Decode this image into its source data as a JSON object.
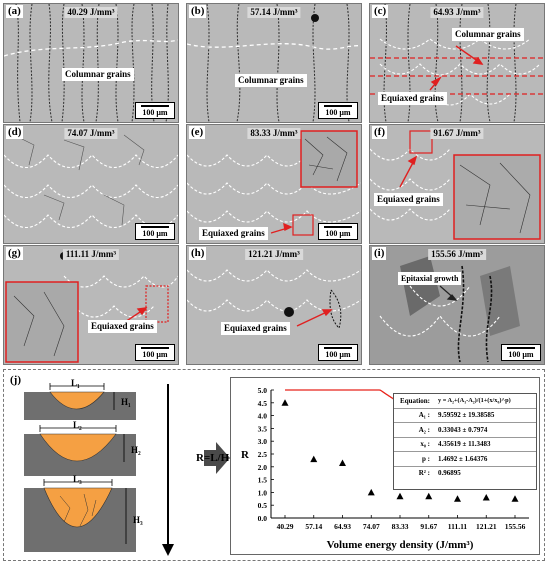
{
  "panels": [
    {
      "id": "a",
      "label": "(a)",
      "energy": "40.29 J/mm³",
      "annotation": "Columnar grains",
      "scale": "100 μm"
    },
    {
      "id": "b",
      "label": "(b)",
      "energy": "57.14 J/mm³",
      "annotation": "Columnar grains",
      "scale": "100 μm"
    },
    {
      "id": "c",
      "label": "(c)",
      "energy": "64.93 J/mm³",
      "annotation": "Columnar grains",
      "annotation2": "Equiaxed grains",
      "scale": "100 μm"
    },
    {
      "id": "d",
      "label": "(d)",
      "energy": "74.07 J/mm³",
      "scale": "100 μm"
    },
    {
      "id": "e",
      "label": "(e)",
      "energy": "83.33 J/mm³",
      "annotation": "Equiaxed grains",
      "scale": "100 μm"
    },
    {
      "id": "f",
      "label": "(f)",
      "energy": "91.67 J/mm³",
      "annotation": "Equiaxed grains",
      "scale": "100 μm"
    },
    {
      "id": "g",
      "label": "(g)",
      "energy": "111.11 J/mm³",
      "annotation": "Equiaxed grains",
      "scale": "100 μm"
    },
    {
      "id": "h",
      "label": "(h)",
      "energy": "121.21 J/mm³",
      "annotation": "Equiaxed grains",
      "scale": "100 μm"
    },
    {
      "id": "i",
      "label": "(i)",
      "energy": "155.56 J/mm³",
      "annotation": "Epitaxial growth",
      "scale": "100 μm"
    }
  ],
  "panel_j": {
    "label": "(j)",
    "pool_labels": [
      {
        "L": "L₁",
        "H": "H₁"
      },
      {
        "L": "L₂",
        "H": "H₂"
      },
      {
        "L": "L₃",
        "H": "H₃"
      }
    ],
    "ratio": "R=L/H",
    "colors": {
      "pool": "#f5a043",
      "substrate": "#6f6f6f",
      "fit": "#e8231a",
      "frame": "#e02020"
    }
  },
  "chart_data": {
    "type": "scatter",
    "xlabel": "Volume energy density (J/mm³)",
    "ylabel": "R",
    "categories": [
      "40.29",
      "57.14",
      "64.93",
      "74.07",
      "83.33",
      "91.67",
      "111.11",
      "121.21",
      "155.56"
    ],
    "values": [
      4.5,
      2.3,
      2.15,
      1.0,
      0.85,
      0.85,
      0.75,
      0.8,
      0.75
    ],
    "ylim": [
      0,
      5.0
    ],
    "yticks": [
      "0.0",
      "0.5",
      "1.0",
      "1.5",
      "2.0",
      "2.5",
      "3.0",
      "3.5",
      "4.0",
      "4.5",
      "5.0"
    ],
    "fit": {
      "equation_label": "Equation:",
      "equation": "y = A₂+(A₁-A₂)/(1+(x/x₀)^p)",
      "params": [
        {
          "name": "A₁ :",
          "value": "9.59592 ± 19.38585"
        },
        {
          "name": "A₂ :",
          "value": "0.33043 ± 0.7974"
        },
        {
          "name": "x₀ :",
          "value": "4.35619 ± 11.3483"
        },
        {
          "name": "p :",
          "value": "1.4692 ± 1.64376"
        },
        {
          "name": "R² :",
          "value": "0.96895"
        }
      ],
      "A1": 9.59592,
      "A2": 0.33043,
      "x0": 4.35619,
      "p": 1.4692
    }
  }
}
